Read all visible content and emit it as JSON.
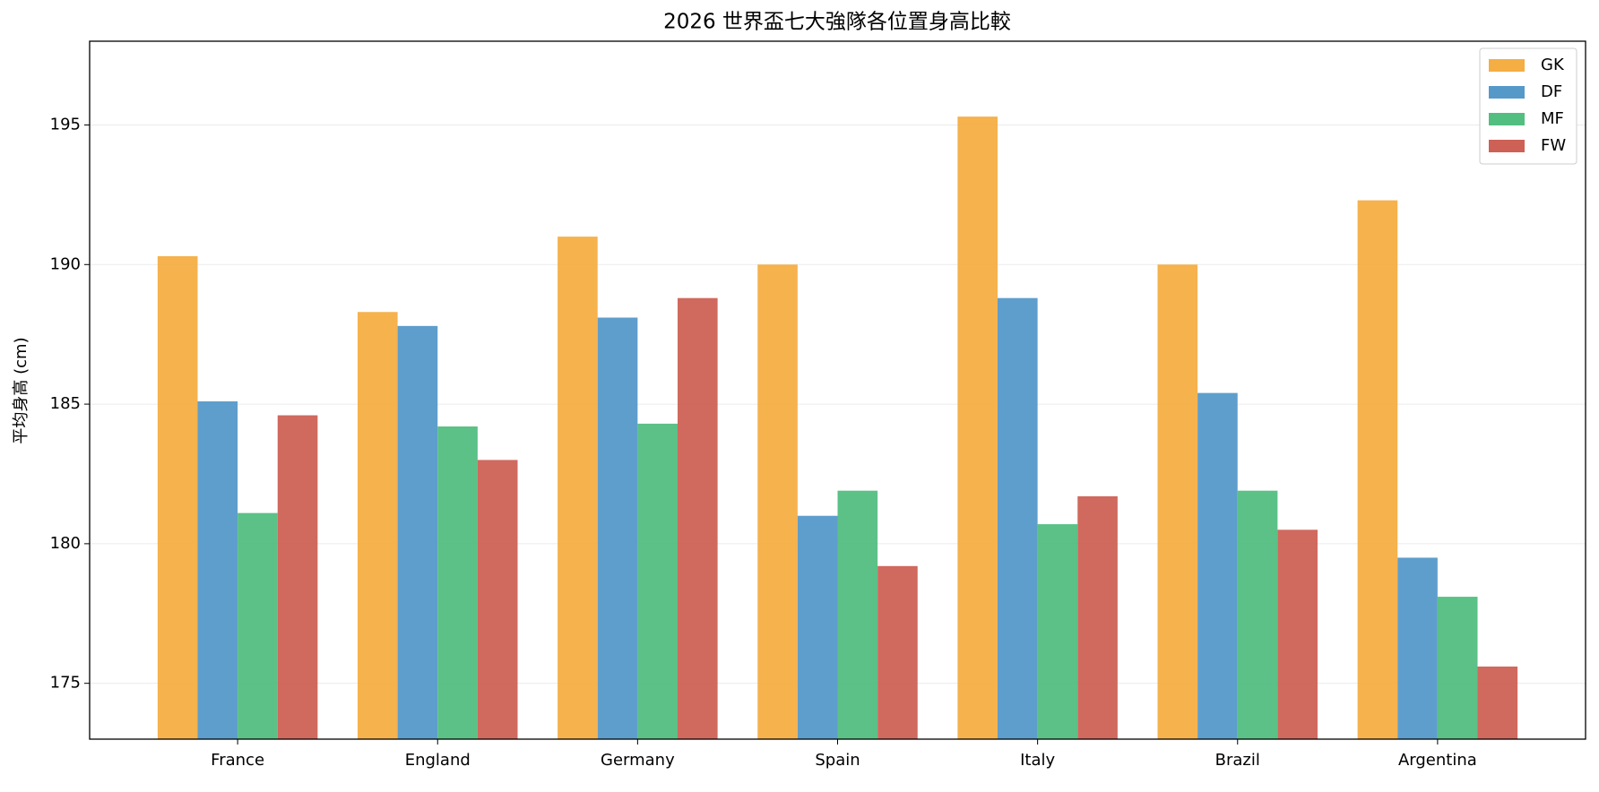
{
  "chart_data": {
    "type": "bar",
    "title": "2026 世界盃七大強隊各位置身高比較",
    "ylabel": "平均身高 (cm)",
    "categories": [
      "France",
      "England",
      "Germany",
      "Spain",
      "Italy",
      "Brazil",
      "Argentina"
    ],
    "series": [
      {
        "name": "GK",
        "color": "#f4ae43",
        "values": [
          190.3,
          188.3,
          191.0,
          190.0,
          195.3,
          190.0,
          192.3
        ]
      },
      {
        "name": "DF",
        "color": "#5599c9",
        "values": [
          185.1,
          187.8,
          188.1,
          181.0,
          188.8,
          185.4,
          179.5
        ]
      },
      {
        "name": "MF",
        "color": "#52be80",
        "values": [
          181.1,
          184.2,
          184.3,
          181.9,
          180.7,
          181.9,
          178.1
        ]
      },
      {
        "name": "FW",
        "color": "#cd6155",
        "values": [
          184.6,
          183.0,
          188.8,
          179.2,
          181.7,
          180.5,
          175.6
        ]
      }
    ],
    "ylim": [
      173,
      198
    ],
    "yticks": [
      175,
      180,
      185,
      190,
      195
    ],
    "grid": true,
    "legend": "upper right"
  }
}
